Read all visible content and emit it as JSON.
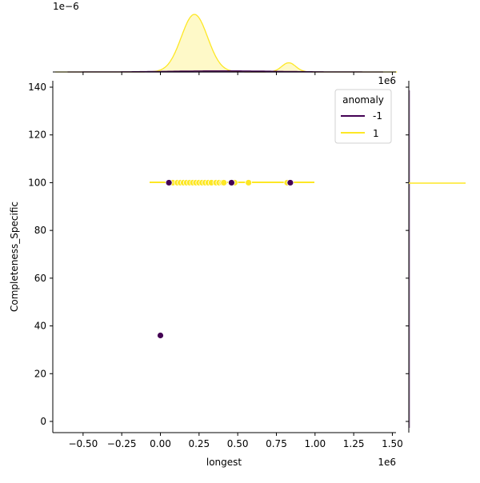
{
  "chart_data": {
    "type": "scatter",
    "kind": "jointplot",
    "xlabel": "longest",
    "ylabel": "Completeness_Specific",
    "x_offset_label": "1e6",
    "top_marginal_offset_label": "1e−6",
    "right_marginal_offset_label": "1e6",
    "xlim": [
      -0.68,
      1.53
    ],
    "ylim": [
      -5,
      141
    ],
    "x_ticks": [
      -0.5,
      -0.25,
      0.0,
      0.25,
      0.5,
      0.75,
      1.0,
      1.25,
      1.5
    ],
    "x_tick_labels": [
      "−0.50",
      "−0.25",
      "0.00",
      "0.25",
      "0.50",
      "0.75",
      "1.00",
      "1.25",
      "1.50"
    ],
    "y_ticks": [
      0,
      20,
      40,
      60,
      80,
      100,
      120,
      140
    ],
    "y_tick_labels": [
      "0",
      "20",
      "40",
      "60",
      "80",
      "100",
      "120",
      "140"
    ],
    "grid": false,
    "legend": {
      "title": "anomaly",
      "position": "upper right",
      "entries": [
        {
          "label": "-1",
          "color": "#440154"
        },
        {
          "label": "1",
          "color": "#fde725"
        }
      ]
    },
    "series": [
      {
        "name": "1",
        "color": "#fde725",
        "points": [
          [
            0.08,
            100
          ],
          [
            0.11,
            100
          ],
          [
            0.13,
            100
          ],
          [
            0.15,
            100
          ],
          [
            0.17,
            100
          ],
          [
            0.19,
            100
          ],
          [
            0.21,
            100
          ],
          [
            0.23,
            100
          ],
          [
            0.25,
            100
          ],
          [
            0.27,
            100
          ],
          [
            0.29,
            100
          ],
          [
            0.31,
            100
          ],
          [
            0.33,
            100
          ],
          [
            0.36,
            100
          ],
          [
            0.38,
            100
          ],
          [
            0.4,
            100
          ],
          [
            0.41,
            100
          ],
          [
            0.48,
            100
          ],
          [
            0.57,
            100
          ],
          [
            0.82,
            100
          ]
        ],
        "kde_line_y": 100,
        "kde_line_x_range": [
          -0.07,
          1.0
        ]
      },
      {
        "name": "-1",
        "color": "#440154",
        "points": [
          [
            0.0,
            36
          ],
          [
            0.055,
            100
          ],
          [
            0.46,
            100
          ],
          [
            0.84,
            100
          ]
        ]
      }
    ],
    "top_marginal": {
      "type": "kde",
      "series": [
        {
          "name": "1",
          "color": "#fde725",
          "peaks": [
            {
              "x": 0.22,
              "rel_height": 1.0
            },
            {
              "x": 0.83,
              "rel_height": 0.16
            }
          ]
        },
        {
          "name": "-1",
          "color": "#440154",
          "peaks": [
            {
              "x": 0.4,
              "rel_height": 0.02
            }
          ]
        }
      ]
    },
    "right_marginal": {
      "type": "kde",
      "series": [
        {
          "name": "1",
          "color": "#fde725",
          "spike_at_y": 100
        },
        {
          "name": "-1",
          "color": "#440154",
          "note": "flat near zero"
        }
      ]
    }
  }
}
